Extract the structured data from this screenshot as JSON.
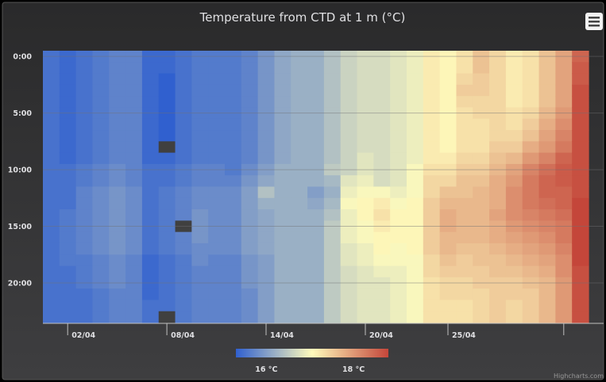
{
  "chart_data": {
    "type": "heatmap",
    "title": "Temperature from CTD at 1 m (°C)",
    "xlabel": "",
    "ylabel": "",
    "x_start": "01/04",
    "x_days": 33,
    "x_ticks": [
      "02/04",
      "08/04",
      "14/04",
      "20/04",
      "25/04"
    ],
    "y_ticks": [
      "0:00",
      "5:00",
      "10:00",
      "15:00",
      "20:00"
    ],
    "y_hours": 24,
    "color_axis": {
      "min": 15.3,
      "max": 18.8,
      "stops": [
        "#3060cf",
        "#fffbbc",
        "#c4463a"
      ],
      "tick_labels": [
        "16 °C",
        "18 °C"
      ],
      "tick_values": [
        16,
        18
      ]
    },
    "missing_color": "#404040",
    "missing_cells": [
      [
        7,
        8
      ],
      [
        8,
        15
      ],
      [
        7,
        23
      ],
      [
        33,
        4
      ]
    ],
    "day_profiles": [
      {
        "date": "01/04",
        "temps": [
          15.5,
          15.5,
          15.5,
          15.5,
          15.5,
          15.5,
          15.5,
          15.5,
          15.5,
          15.5,
          15.5,
          15.5,
          15.5,
          15.5,
          15.5,
          15.5,
          15.5,
          15.5,
          15.5,
          15.5,
          15.5,
          15.5,
          15.5,
          15.5
        ]
      },
      {
        "date": "02/04",
        "temps": [
          15.4,
          15.4,
          15.4,
          15.4,
          15.4,
          15.4,
          15.4,
          15.4,
          15.4,
          15.4,
          15.5,
          15.5,
          15.5,
          15.5,
          15.6,
          15.6,
          15.6,
          15.6,
          15.6,
          15.5,
          15.5,
          15.5,
          15.5,
          15.5
        ]
      },
      {
        "date": "03/04",
        "temps": [
          15.5,
          15.5,
          15.5,
          15.5,
          15.5,
          15.5,
          15.5,
          15.5,
          15.5,
          15.5,
          15.6,
          15.6,
          15.7,
          15.7,
          15.7,
          15.7,
          15.7,
          15.7,
          15.6,
          15.6,
          15.6,
          15.5,
          15.5,
          15.5
        ]
      },
      {
        "date": "04/04",
        "temps": [
          15.6,
          15.6,
          15.6,
          15.6,
          15.6,
          15.6,
          15.6,
          15.6,
          15.6,
          15.6,
          15.7,
          15.7,
          15.8,
          15.8,
          15.8,
          15.8,
          15.8,
          15.8,
          15.7,
          15.7,
          15.7,
          15.6,
          15.6,
          15.6
        ]
      },
      {
        "date": "05/04",
        "temps": [
          15.7,
          15.7,
          15.7,
          15.7,
          15.7,
          15.7,
          15.7,
          15.7,
          15.7,
          15.7,
          15.8,
          15.8,
          15.9,
          15.9,
          15.9,
          15.9,
          15.9,
          15.9,
          15.8,
          15.8,
          15.8,
          15.7,
          15.7,
          15.7
        ]
      },
      {
        "date": "06/04",
        "temps": [
          15.7,
          15.7,
          15.7,
          15.7,
          15.7,
          15.7,
          15.7,
          15.7,
          15.7,
          15.7,
          15.7,
          15.7,
          15.8,
          15.8,
          15.8,
          15.8,
          15.8,
          15.8,
          15.7,
          15.7,
          15.7,
          15.7,
          15.7,
          15.7
        ]
      },
      {
        "date": "07/04",
        "temps": [
          15.4,
          15.4,
          15.4,
          15.4,
          15.4,
          15.4,
          15.4,
          15.4,
          15.4,
          15.4,
          15.5,
          15.5,
          15.5,
          15.5,
          15.5,
          15.5,
          15.5,
          15.5,
          15.4,
          15.4,
          15.4,
          15.4,
          15.5,
          15.5
        ]
      },
      {
        "date": "08/04",
        "temps": [
          15.4,
          15.4,
          15.3,
          15.3,
          15.3,
          15.3,
          15.3,
          15.3,
          15.4,
          15.4,
          15.5,
          15.5,
          15.6,
          15.6,
          15.6,
          15.6,
          15.6,
          15.6,
          15.5,
          15.5,
          15.5,
          15.5,
          15.5,
          15.5
        ]
      },
      {
        "date": "09/04",
        "temps": [
          15.5,
          15.5,
          15.5,
          15.5,
          15.5,
          15.5,
          15.5,
          15.5,
          15.5,
          15.5,
          15.6,
          15.6,
          15.7,
          15.7,
          15.7,
          15.7,
          15.7,
          15.7,
          15.6,
          15.6,
          15.6,
          15.6,
          15.6,
          15.6
        ]
      },
      {
        "date": "10/04",
        "temps": [
          15.6,
          15.6,
          15.6,
          15.6,
          15.6,
          15.6,
          15.6,
          15.6,
          15.6,
          15.6,
          15.7,
          15.7,
          15.8,
          15.8,
          15.9,
          15.9,
          15.9,
          15.8,
          15.8,
          15.7,
          15.7,
          15.7,
          15.7,
          15.7
        ]
      },
      {
        "date": "11/04",
        "temps": [
          15.6,
          15.6,
          15.6,
          15.6,
          15.6,
          15.6,
          15.6,
          15.6,
          15.6,
          15.6,
          15.7,
          15.7,
          15.8,
          15.8,
          15.8,
          15.8,
          15.8,
          15.8,
          15.7,
          15.7,
          15.7,
          15.7,
          15.7,
          15.7
        ]
      },
      {
        "date": "12/04",
        "temps": [
          15.6,
          15.6,
          15.6,
          15.6,
          15.6,
          15.6,
          15.6,
          15.6,
          15.6,
          15.6,
          15.6,
          15.7,
          15.8,
          15.8,
          15.8,
          15.8,
          15.8,
          15.8,
          15.7,
          15.7,
          15.7,
          15.7,
          15.7,
          15.7
        ]
      },
      {
        "date": "13/04",
        "temps": [
          15.7,
          15.7,
          15.7,
          15.7,
          15.7,
          15.7,
          15.7,
          15.7,
          15.7,
          15.7,
          15.8,
          15.9,
          16.0,
          16.0,
          16.0,
          16.0,
          16.0,
          16.0,
          15.9,
          15.9,
          15.9,
          15.8,
          15.8,
          15.8
        ]
      },
      {
        "date": "14/04",
        "temps": [
          15.9,
          15.9,
          15.9,
          15.9,
          15.9,
          15.9,
          15.9,
          15.9,
          15.9,
          15.9,
          16.0,
          16.1,
          16.4,
          16.2,
          16.1,
          16.1,
          16.1,
          16.1,
          16.0,
          16.0,
          16.0,
          16.0,
          16.0,
          16.0
        ]
      },
      {
        "date": "15/04",
        "temps": [
          16.1,
          16.1,
          16.1,
          16.1,
          16.1,
          16.1,
          16.1,
          16.1,
          16.1,
          16.1,
          16.2,
          16.2,
          16.2,
          16.2,
          16.2,
          16.2,
          16.2,
          16.2,
          16.2,
          16.2,
          16.2,
          16.2,
          16.2,
          16.2
        ]
      },
      {
        "date": "16/04",
        "temps": [
          16.2,
          16.2,
          16.2,
          16.2,
          16.2,
          16.2,
          16.2,
          16.2,
          16.2,
          16.2,
          16.2,
          16.2,
          16.2,
          16.2,
          16.2,
          16.2,
          16.2,
          16.2,
          16.2,
          16.2,
          16.2,
          16.2,
          16.2,
          16.2
        ]
      },
      {
        "date": "17/04",
        "temps": [
          16.2,
          16.2,
          16.2,
          16.2,
          16.2,
          16.2,
          16.2,
          16.2,
          16.2,
          16.2,
          16.2,
          16.2,
          16.0,
          16.1,
          16.2,
          16.2,
          16.2,
          16.2,
          16.2,
          16.2,
          16.2,
          16.2,
          16.2,
          16.2
        ]
      },
      {
        "date": "18/04",
        "temps": [
          16.4,
          16.4,
          16.4,
          16.4,
          16.4,
          16.4,
          16.4,
          16.4,
          16.4,
          16.4,
          16.5,
          16.3,
          16.2,
          16.3,
          16.4,
          16.5,
          16.5,
          16.5,
          16.5,
          16.5,
          16.5,
          16.5,
          16.5,
          16.5
        ]
      },
      {
        "date": "19/04",
        "temps": [
          16.6,
          16.6,
          16.6,
          16.6,
          16.6,
          16.6,
          16.6,
          16.6,
          16.6,
          16.6,
          16.6,
          16.8,
          16.9,
          17.0,
          16.9,
          16.9,
          16.9,
          16.8,
          16.8,
          16.7,
          16.7,
          16.7,
          16.7,
          16.7
        ]
      },
      {
        "date": "20/04",
        "temps": [
          16.7,
          16.7,
          16.7,
          16.7,
          16.7,
          16.7,
          16.7,
          16.7,
          16.7,
          16.8,
          16.8,
          16.9,
          17.0,
          17.1,
          17.1,
          17.0,
          17.0,
          16.9,
          16.9,
          16.8,
          16.8,
          16.8,
          16.8,
          16.8
        ]
      },
      {
        "date": "21/04",
        "temps": [
          16.7,
          16.7,
          16.7,
          16.7,
          16.7,
          16.7,
          16.7,
          16.7,
          16.7,
          16.7,
          16.7,
          16.7,
          17.0,
          17.2,
          17.3,
          17.2,
          17.1,
          17.1,
          17.0,
          16.9,
          16.8,
          16.8,
          16.8,
          16.8
        ]
      },
      {
        "date": "22/04",
        "temps": [
          16.8,
          16.8,
          16.8,
          16.8,
          16.8,
          16.8,
          16.8,
          16.8,
          16.8,
          16.8,
          16.8,
          16.8,
          16.9,
          17.0,
          17.1,
          17.1,
          17.1,
          17.0,
          17.0,
          16.9,
          16.9,
          16.9,
          16.9,
          16.9
        ]
      },
      {
        "date": "23/04",
        "temps": [
          16.9,
          16.9,
          16.9,
          16.9,
          16.9,
          16.9,
          16.9,
          16.9,
          16.9,
          16.9,
          17.0,
          17.0,
          17.0,
          17.1,
          17.1,
          17.1,
          17.1,
          17.1,
          17.0,
          17.0,
          17.0,
          17.0,
          17.0,
          17.0
        ]
      },
      {
        "date": "24/04",
        "temps": [
          17.2,
          17.2,
          17.2,
          17.2,
          17.2,
          17.2,
          17.2,
          17.2,
          17.2,
          17.2,
          17.3,
          17.4,
          17.4,
          17.5,
          17.5,
          17.5,
          17.5,
          17.5,
          17.4,
          17.4,
          17.3,
          17.3,
          17.3,
          17.3
        ]
      },
      {
        "date": "25/04",
        "temps": [
          17.1,
          17.1,
          17.1,
          17.1,
          17.1,
          17.1,
          17.1,
          17.1,
          17.1,
          17.2,
          17.3,
          17.4,
          17.6,
          17.7,
          17.8,
          17.8,
          17.7,
          17.7,
          17.6,
          17.5,
          17.4,
          17.4,
          17.3,
          17.3
        ]
      },
      {
        "date": "26/04",
        "temps": [
          17.3,
          17.3,
          17.4,
          17.5,
          17.4,
          17.3,
          17.3,
          17.3,
          17.3,
          17.4,
          17.5,
          17.6,
          17.6,
          17.7,
          17.7,
          17.7,
          17.7,
          17.6,
          17.5,
          17.5,
          17.4,
          17.4,
          17.3,
          17.3
        ]
      },
      {
        "date": "27/04",
        "temps": [
          17.6,
          17.6,
          17.5,
          17.5,
          17.4,
          17.4,
          17.3,
          17.3,
          17.3,
          17.4,
          17.5,
          17.6,
          17.7,
          17.7,
          17.7,
          17.7,
          17.7,
          17.6,
          17.6,
          17.5,
          17.5,
          17.4,
          17.4,
          17.4
        ]
      },
      {
        "date": "28/04",
        "temps": [
          17.4,
          17.4,
          17.4,
          17.4,
          17.4,
          17.4,
          17.4,
          17.4,
          17.5,
          17.6,
          17.7,
          17.8,
          17.8,
          17.8,
          17.9,
          17.8,
          17.8,
          17.7,
          17.6,
          17.6,
          17.5,
          17.5,
          17.5,
          17.5
        ]
      },
      {
        "date": "29/04",
        "temps": [
          17.2,
          17.2,
          17.2,
          17.2,
          17.2,
          17.3,
          17.3,
          17.4,
          17.5,
          17.7,
          17.9,
          18.0,
          18.1,
          18.1,
          18.1,
          18.0,
          17.9,
          17.8,
          17.7,
          17.6,
          17.5,
          17.5,
          17.4,
          17.4
        ]
      },
      {
        "date": "30/04",
        "temps": [
          17.3,
          17.3,
          17.3,
          17.3,
          17.3,
          17.4,
          17.5,
          17.6,
          17.8,
          18.0,
          18.2,
          18.3,
          18.3,
          18.3,
          18.2,
          18.1,
          18.0,
          17.9,
          17.8,
          17.7,
          17.6,
          17.5,
          17.5,
          17.5
        ]
      },
      {
        "date": "01/05",
        "temps": [
          17.6,
          17.6,
          17.6,
          17.6,
          17.6,
          17.7,
          17.8,
          17.9,
          18.0,
          18.2,
          18.4,
          18.5,
          18.5,
          18.4,
          18.3,
          18.2,
          18.1,
          18.0,
          17.9,
          17.8,
          17.7,
          17.7,
          17.7,
          17.7
        ]
      },
      {
        "date": "02/05",
        "temps": [
          17.9,
          17.9,
          17.9,
          17.9,
          17.9,
          18.0,
          18.1,
          18.2,
          18.3,
          18.5,
          18.6,
          18.6,
          18.5,
          18.5,
          18.4,
          18.3,
          18.3,
          18.2,
          18.1,
          18.1,
          18.0,
          18.0,
          18.0,
          18.0
        ]
      },
      {
        "date": "03/05",
        "temps": [
          18.5,
          18.6,
          18.6,
          18.7,
          18.7,
          18.7,
          18.7,
          18.7,
          18.7,
          18.7,
          18.7,
          18.7,
          18.7,
          18.8,
          18.8,
          18.8,
          18.8,
          18.8,
          18.8,
          18.7,
          18.7,
          18.7,
          18.7,
          18.7
        ]
      }
    ],
    "credits": "Highcharts.com"
  }
}
